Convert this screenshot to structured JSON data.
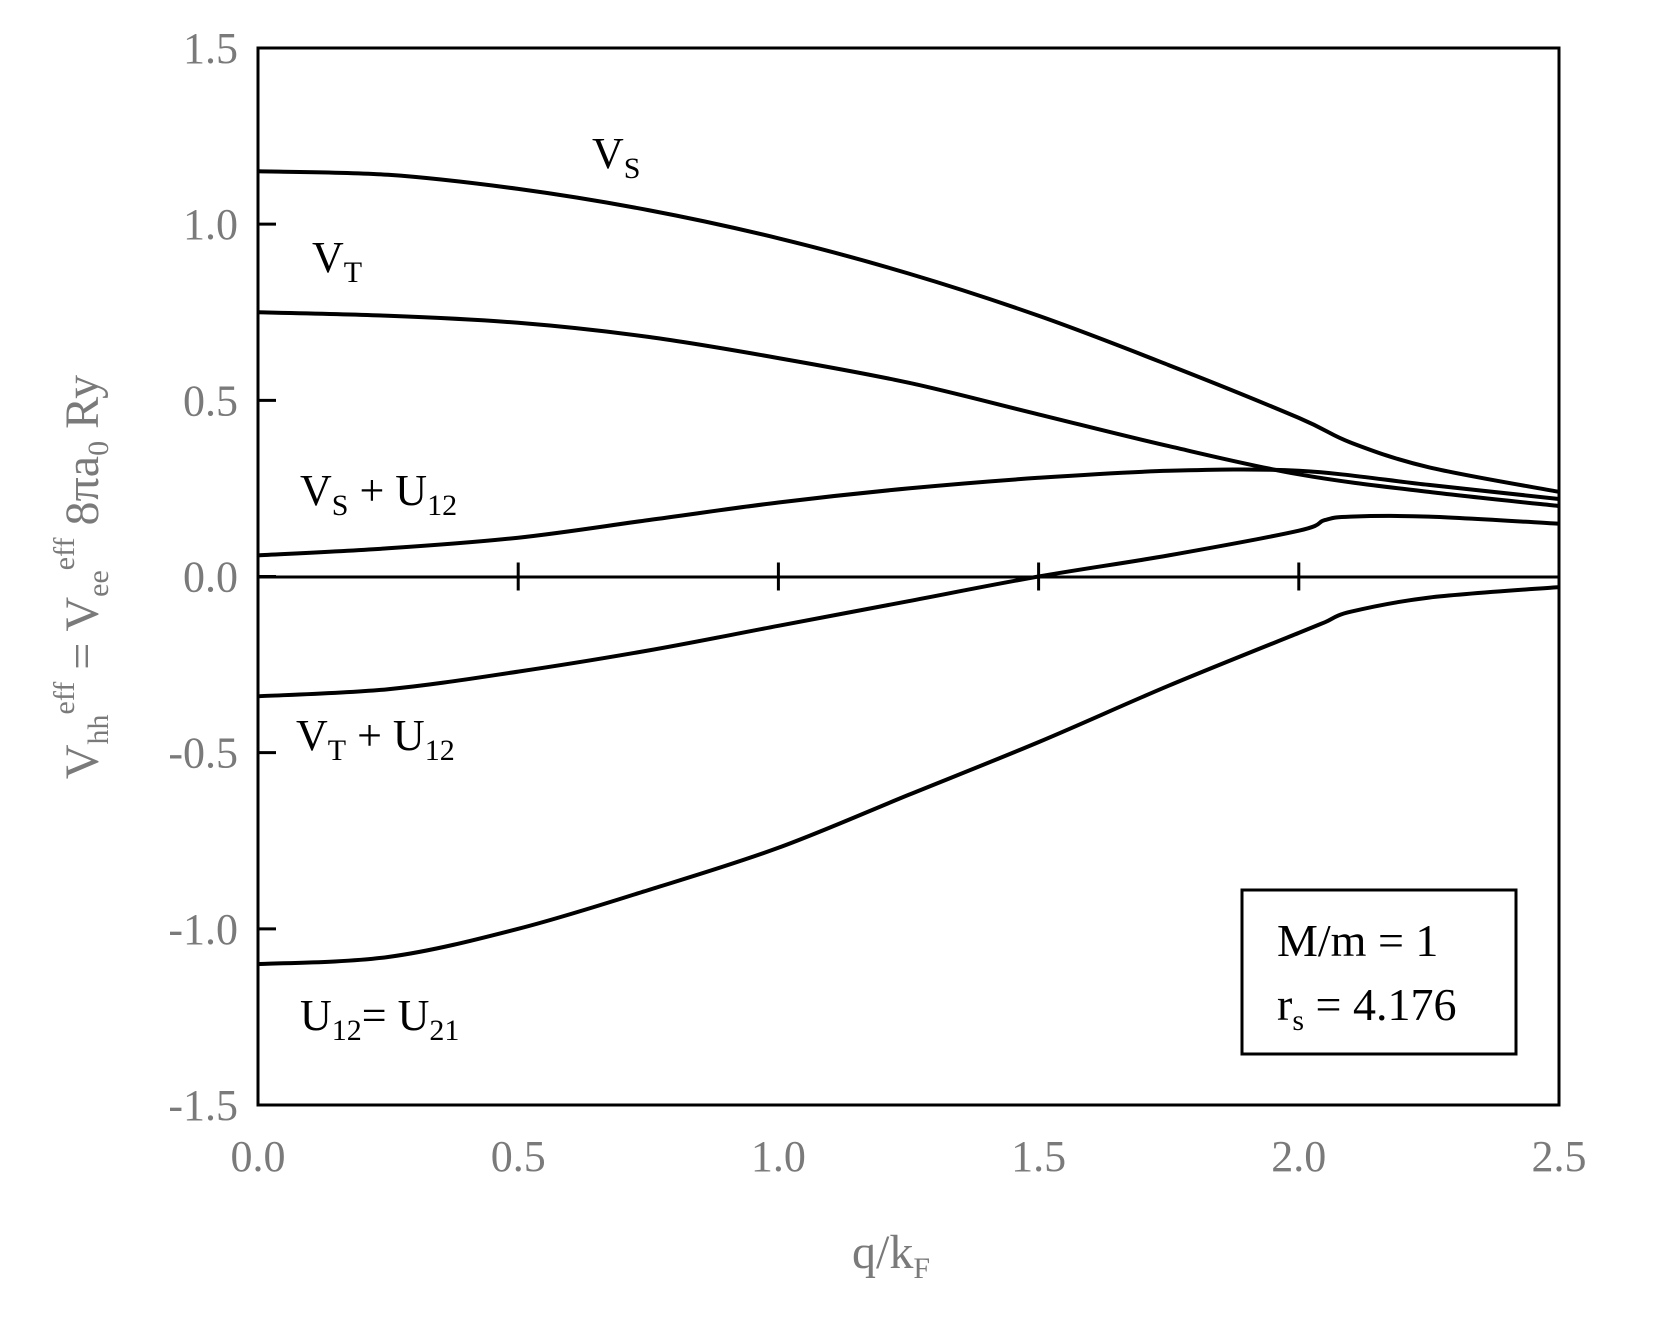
{
  "chart_data": {
    "type": "line",
    "xlabel": "q/k_F",
    "ylabel": "V_hh^eff = V_ee^eff 8πa_0 Ry",
    "xlim": [
      0.0,
      2.5
    ],
    "ylim": [
      -1.5,
      1.5
    ],
    "x_ticks": [
      "0.0",
      "0.5",
      "1.0",
      "1.5",
      "2.0",
      "2.5"
    ],
    "y_ticks": [
      "1.5",
      "1.0",
      "0.5",
      "0.0",
      "-0.5",
      "-1.0",
      "-1.5"
    ],
    "grid": false,
    "series": [
      {
        "name": "V_S",
        "x": [
          0.0,
          0.25,
          0.5,
          0.75,
          1.0,
          1.25,
          1.5,
          1.75,
          2.0,
          2.1,
          2.25,
          2.5
        ],
        "y": [
          1.15,
          1.14,
          1.1,
          1.04,
          0.96,
          0.86,
          0.74,
          0.6,
          0.45,
          0.38,
          0.31,
          0.24
        ]
      },
      {
        "name": "V_T",
        "x": [
          0.0,
          0.25,
          0.5,
          0.75,
          1.0,
          1.25,
          1.5,
          1.75,
          2.0,
          2.25,
          2.5
        ],
        "y": [
          0.75,
          0.74,
          0.72,
          0.68,
          0.62,
          0.55,
          0.46,
          0.37,
          0.29,
          0.24,
          0.2
        ]
      },
      {
        "name": "V_S + U_12",
        "x": [
          0.0,
          0.25,
          0.5,
          0.75,
          1.0,
          1.25,
          1.5,
          1.75,
          2.0,
          2.25,
          2.5
        ],
        "y": [
          0.06,
          0.08,
          0.11,
          0.16,
          0.21,
          0.25,
          0.28,
          0.3,
          0.3,
          0.26,
          0.22
        ]
      },
      {
        "name": "V_T + U_12",
        "x": [
          0.0,
          0.25,
          0.5,
          0.75,
          1.0,
          1.25,
          1.5,
          1.75,
          2.0,
          2.05,
          2.1,
          2.25,
          2.5
        ],
        "y": [
          -0.34,
          -0.32,
          -0.27,
          -0.21,
          -0.14,
          -0.07,
          0.0,
          0.06,
          0.13,
          0.16,
          0.17,
          0.17,
          0.15
        ]
      },
      {
        "name": "U_12 = U_21",
        "x": [
          0.0,
          0.25,
          0.5,
          0.75,
          1.0,
          1.25,
          1.5,
          1.75,
          2.0,
          2.05,
          2.1,
          2.25,
          2.5
        ],
        "y": [
          -1.1,
          -1.08,
          -1.0,
          -0.89,
          -0.77,
          -0.62,
          -0.47,
          -0.31,
          -0.16,
          -0.13,
          -0.1,
          -0.06,
          -0.03
        ]
      }
    ],
    "legend_box": {
      "position": "bottom-right",
      "lines": [
        "M/m = 1",
        "r_s = 4.176"
      ]
    }
  },
  "labels": {
    "vs_main": "V",
    "vs_sub": "S",
    "vt_main": "V",
    "vt_sub": "T",
    "vsu_main": "V",
    "vsu_sub": "S",
    "vsu_plus": " + U",
    "vsu_sub2": "12",
    "vtu_main": "V",
    "vtu_sub": "T",
    "vtu_plus": " + U",
    "vtu_sub2": "12",
    "u_main": "U",
    "u_sub": "12",
    "u_eq": "= U",
    "u_sub2": "21",
    "legend_line1": "M/m = 1",
    "legend_line2_main": "r",
    "legend_line2_sub": "s",
    "legend_line2_rest": " = 4.176",
    "xlabel_main": "q/k",
    "xlabel_sub": "F",
    "ylabel_v1": "V",
    "ylabel_hh": "hh",
    "ylabel_eff1": "eff",
    "ylabel_eq": " = V",
    "ylabel_ee": "ee",
    "ylabel_eff2": "eff",
    "ylabel_rest": "  8πa",
    "ylabel_zero": "0",
    "ylabel_ry": " Ry"
  }
}
